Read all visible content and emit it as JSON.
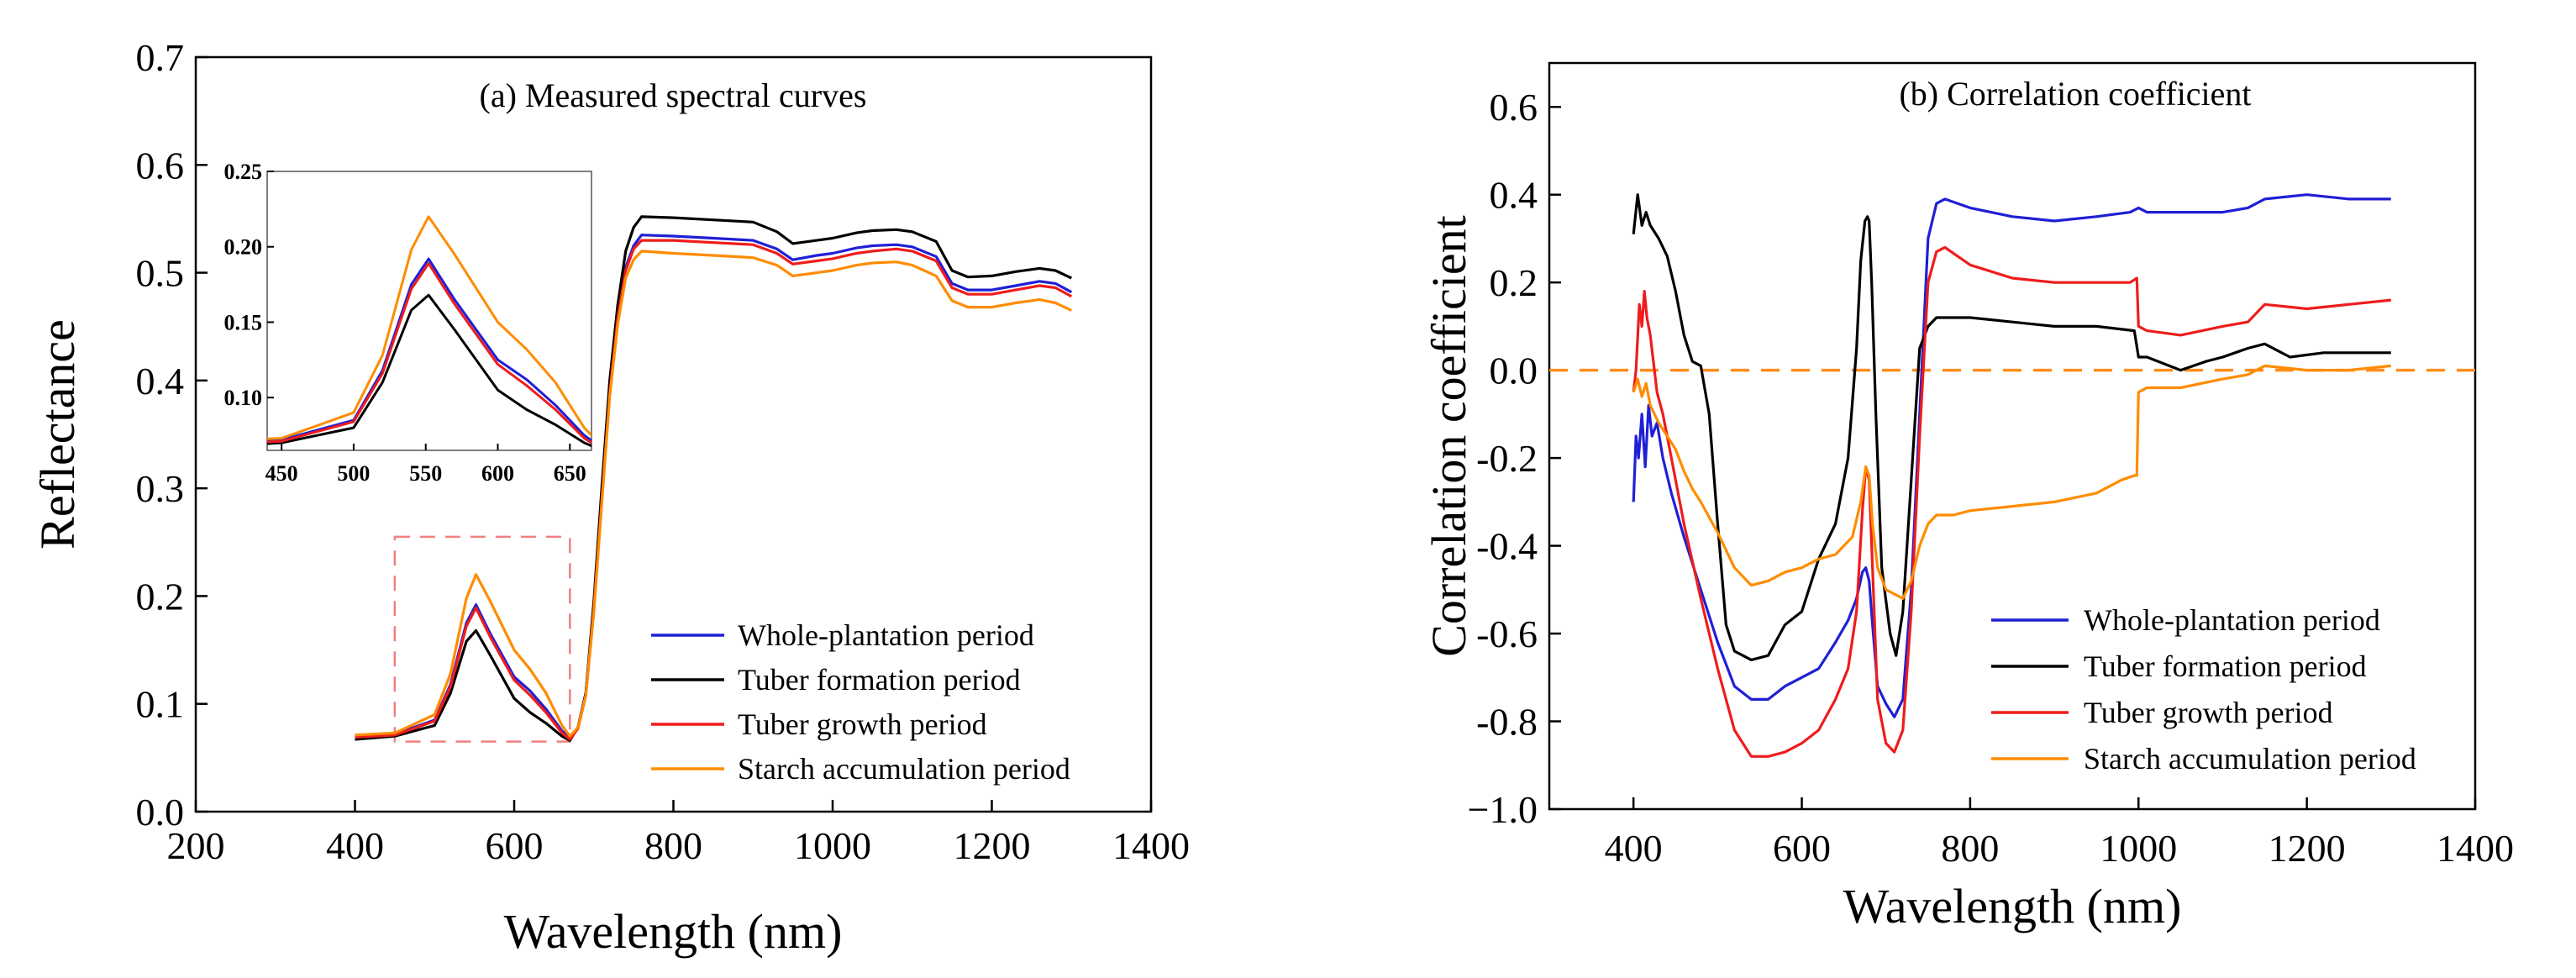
{
  "figure": {
    "series_colors": {
      "whole": "#1f1fd6",
      "tuber_formation": "#000000",
      "tuber_growth": "#ee1c1c",
      "starch": "#ff8c00",
      "zero_line": "#ff8c1a",
      "zoom_box": "#f08080"
    }
  },
  "chart_data": [
    {
      "type": "line",
      "title": "(a) Measured spectral curves",
      "xlabel": "Wavelength (nm)",
      "ylabel": "Reflectance",
      "xlim": [
        200,
        1400
      ],
      "ylim": [
        0,
        0.7
      ],
      "xticks": [
        200,
        400,
        600,
        800,
        1000,
        1200,
        1400
      ],
      "yticks": [
        0.0,
        0.1,
        0.2,
        0.3,
        0.4,
        0.5,
        0.6,
        0.7
      ],
      "xtick_labels": [
        "200",
        "400",
        "600",
        "800",
        "1000",
        "1200",
        "1400"
      ],
      "ytick_labels": [
        "0.0",
        "0.1",
        "0.2",
        "0.3",
        "0.4",
        "0.5",
        "0.6",
        "0.7"
      ],
      "legend": [
        "Whole-plantation period",
        "Tuber formation period",
        "Tuber growth period",
        "Starch accumulation period"
      ],
      "legend_position": "lower-right",
      "zoom_box": {
        "x": [
          450,
          670
        ],
        "y": [
          0.065,
          0.255
        ]
      },
      "series": [
        {
          "name": "Whole-plantation period",
          "color_key": "whole",
          "x": [
            400,
            450,
            500,
            520,
            540,
            552,
            570,
            600,
            620,
            640,
            660,
            670,
            680,
            690,
            700,
            710,
            720,
            730,
            740,
            750,
            760,
            800,
            850,
            900,
            930,
            950,
            980,
            1000,
            1030,
            1050,
            1080,
            1100,
            1130,
            1150,
            1170,
            1200,
            1230,
            1260,
            1280,
            1300
          ],
          "y": [
            0.07,
            0.072,
            0.085,
            0.118,
            0.175,
            0.192,
            0.165,
            0.125,
            0.112,
            0.095,
            0.075,
            0.068,
            0.078,
            0.11,
            0.19,
            0.29,
            0.39,
            0.46,
            0.505,
            0.525,
            0.535,
            0.534,
            0.532,
            0.53,
            0.522,
            0.512,
            0.516,
            0.518,
            0.523,
            0.525,
            0.526,
            0.524,
            0.515,
            0.49,
            0.484,
            0.484,
            0.488,
            0.492,
            0.49,
            0.482
          ]
        },
        {
          "name": "Tuber formation period",
          "color_key": "tuber_formation",
          "x": [
            400,
            450,
            500,
            520,
            540,
            552,
            570,
            600,
            620,
            640,
            660,
            670,
            680,
            690,
            700,
            710,
            720,
            730,
            740,
            750,
            760,
            800,
            850,
            900,
            930,
            950,
            980,
            1000,
            1030,
            1050,
            1080,
            1100,
            1130,
            1150,
            1170,
            1200,
            1230,
            1260,
            1280,
            1300
          ],
          "y": [
            0.067,
            0.07,
            0.08,
            0.11,
            0.158,
            0.168,
            0.145,
            0.105,
            0.092,
            0.082,
            0.07,
            0.066,
            0.078,
            0.11,
            0.195,
            0.3,
            0.4,
            0.47,
            0.52,
            0.542,
            0.552,
            0.551,
            0.549,
            0.547,
            0.538,
            0.527,
            0.53,
            0.532,
            0.537,
            0.539,
            0.54,
            0.538,
            0.529,
            0.502,
            0.496,
            0.497,
            0.501,
            0.504,
            0.502,
            0.495
          ]
        },
        {
          "name": "Tuber growth period",
          "color_key": "tuber_growth",
          "x": [
            400,
            450,
            500,
            520,
            540,
            552,
            570,
            600,
            620,
            640,
            660,
            670,
            680,
            690,
            700,
            710,
            720,
            730,
            740,
            750,
            760,
            800,
            850,
            900,
            930,
            950,
            980,
            1000,
            1030,
            1050,
            1080,
            1100,
            1130,
            1150,
            1170,
            1200,
            1230,
            1260,
            1280,
            1300
          ],
          "y": [
            0.069,
            0.071,
            0.084,
            0.116,
            0.172,
            0.189,
            0.162,
            0.122,
            0.108,
            0.092,
            0.073,
            0.067,
            0.077,
            0.108,
            0.188,
            0.288,
            0.388,
            0.458,
            0.502,
            0.522,
            0.53,
            0.53,
            0.528,
            0.526,
            0.518,
            0.508,
            0.511,
            0.513,
            0.518,
            0.52,
            0.522,
            0.52,
            0.511,
            0.486,
            0.48,
            0.48,
            0.484,
            0.488,
            0.486,
            0.478
          ]
        },
        {
          "name": "Starch accumulation period",
          "color_key": "starch",
          "x": [
            400,
            450,
            500,
            520,
            540,
            552,
            570,
            600,
            620,
            640,
            660,
            670,
            680,
            690,
            700,
            710,
            720,
            730,
            740,
            750,
            760,
            800,
            850,
            900,
            930,
            950,
            980,
            1000,
            1030,
            1050,
            1080,
            1100,
            1130,
            1150,
            1170,
            1200,
            1230,
            1260,
            1280,
            1300
          ],
          "y": [
            0.071,
            0.073,
            0.09,
            0.128,
            0.198,
            0.22,
            0.195,
            0.15,
            0.132,
            0.11,
            0.08,
            0.07,
            0.078,
            0.108,
            0.185,
            0.285,
            0.385,
            0.452,
            0.495,
            0.512,
            0.52,
            0.518,
            0.516,
            0.514,
            0.507,
            0.497,
            0.5,
            0.502,
            0.507,
            0.509,
            0.51,
            0.507,
            0.497,
            0.474,
            0.468,
            0.468,
            0.472,
            0.475,
            0.472,
            0.465
          ]
        }
      ],
      "inset": {
        "xlim": [
          440,
          665
        ],
        "ylim": [
          0.065,
          0.25
        ],
        "xticks": [
          450,
          500,
          550,
          600,
          650
        ],
        "yticks": [
          0.1,
          0.15,
          0.2,
          0.25
        ],
        "xtick_labels": [
          "450",
          "500",
          "550",
          "600",
          "650"
        ],
        "ytick_labels": [
          "0.10",
          "0.15",
          "0.20",
          "0.25"
        ]
      }
    },
    {
      "type": "line",
      "title": "(b) Correlation coefficient",
      "xlabel": "Wavelength (nm)",
      "ylabel": "Correlation coefficient",
      "xlim": [
        300,
        1400
      ],
      "ylim": [
        -1.0,
        0.7
      ],
      "xticks": [
        400,
        600,
        800,
        1000,
        1200,
        1400
      ],
      "yticks": [
        -1.0,
        -0.8,
        -0.6,
        -0.4,
        -0.2,
        0.0,
        0.2,
        0.4,
        0.6
      ],
      "xtick_labels": [
        "400",
        "600",
        "800",
        "1000",
        "1200",
        "1400"
      ],
      "ytick_labels": [
        "−1.0",
        "-0.8",
        "-0.6",
        "-0.4",
        "-0.2",
        "0.0",
        "0.2",
        "0.4",
        "0.6"
      ],
      "zero_line": 0.0,
      "legend": [
        "Whole-plantation period",
        "Tuber formation period",
        "Tuber growth period",
        "Starch accumulation period"
      ],
      "legend_position": "lower-right",
      "series": [
        {
          "name": "Whole-plantation period",
          "color_key": "whole",
          "x": [
            400,
            403,
            406,
            410,
            414,
            418,
            422,
            428,
            435,
            445,
            460,
            480,
            500,
            520,
            540,
            560,
            580,
            600,
            620,
            640,
            655,
            665,
            672,
            676,
            680,
            684,
            690,
            700,
            710,
            720,
            730,
            740,
            750,
            760,
            770,
            800,
            850,
            900,
            950,
            990,
            1000,
            1010,
            1050,
            1100,
            1130,
            1150,
            1200,
            1250,
            1300
          ],
          "y": [
            -0.3,
            -0.15,
            -0.2,
            -0.1,
            -0.22,
            -0.08,
            -0.15,
            -0.12,
            -0.2,
            -0.28,
            -0.38,
            -0.5,
            -0.62,
            -0.72,
            -0.75,
            -0.75,
            -0.72,
            -0.7,
            -0.68,
            -0.62,
            -0.57,
            -0.52,
            -0.46,
            -0.45,
            -0.48,
            -0.58,
            -0.72,
            -0.76,
            -0.79,
            -0.75,
            -0.5,
            -0.1,
            0.3,
            0.38,
            0.39,
            0.37,
            0.35,
            0.34,
            0.35,
            0.36,
            0.37,
            0.36,
            0.36,
            0.36,
            0.37,
            0.39,
            0.4,
            0.39,
            0.39
          ]
        },
        {
          "name": "Tuber formation period",
          "color_key": "tuber_formation",
          "x": [
            400,
            405,
            410,
            415,
            420,
            430,
            440,
            450,
            460,
            470,
            480,
            490,
            500,
            510,
            520,
            530,
            540,
            560,
            580,
            600,
            620,
            640,
            655,
            665,
            670,
            675,
            678,
            680,
            683,
            688,
            695,
            705,
            712,
            720,
            730,
            740,
            750,
            760,
            780,
            800,
            850,
            900,
            950,
            995,
            1000,
            1010,
            1050,
            1080,
            1100,
            1130,
            1150,
            1180,
            1220,
            1260,
            1300
          ],
          "y": [
            0.31,
            0.4,
            0.33,
            0.36,
            0.33,
            0.3,
            0.26,
            0.18,
            0.08,
            0.02,
            0.01,
            -0.1,
            -0.35,
            -0.58,
            -0.64,
            -0.65,
            -0.66,
            -0.65,
            -0.58,
            -0.55,
            -0.43,
            -0.35,
            -0.2,
            0.05,
            0.25,
            0.34,
            0.35,
            0.34,
            0.2,
            -0.1,
            -0.45,
            -0.6,
            -0.65,
            -0.55,
            -0.25,
            0.05,
            0.1,
            0.12,
            0.12,
            0.12,
            0.11,
            0.1,
            0.1,
            0.09,
            0.03,
            0.03,
            0.0,
            0.02,
            0.03,
            0.05,
            0.06,
            0.03,
            0.04,
            0.04,
            0.04
          ]
        },
        {
          "name": "Tuber growth period",
          "color_key": "tuber_growth",
          "x": [
            400,
            403,
            407,
            410,
            413,
            416,
            420,
            428,
            435,
            445,
            460,
            480,
            500,
            520,
            540,
            560,
            580,
            600,
            620,
            640,
            655,
            665,
            672,
            676,
            680,
            684,
            690,
            700,
            710,
            720,
            730,
            740,
            750,
            760,
            770,
            800,
            850,
            900,
            950,
            990,
            998,
            1000,
            1010,
            1050,
            1100,
            1130,
            1150,
            1200,
            1250,
            1300
          ],
          "y": [
            -0.05,
            0.0,
            0.15,
            0.1,
            0.18,
            0.12,
            0.08,
            -0.05,
            -0.1,
            -0.2,
            -0.35,
            -0.52,
            -0.68,
            -0.82,
            -0.88,
            -0.88,
            -0.87,
            -0.85,
            -0.82,
            -0.75,
            -0.68,
            -0.55,
            -0.32,
            -0.22,
            -0.25,
            -0.45,
            -0.75,
            -0.85,
            -0.87,
            -0.82,
            -0.55,
            -0.15,
            0.2,
            0.27,
            0.28,
            0.24,
            0.21,
            0.2,
            0.2,
            0.2,
            0.21,
            0.1,
            0.09,
            0.08,
            0.1,
            0.11,
            0.15,
            0.14,
            0.15,
            0.16
          ]
        },
        {
          "name": "Starch accumulation period",
          "color_key": "starch",
          "x": [
            400,
            405,
            410,
            415,
            420,
            430,
            440,
            450,
            460,
            470,
            480,
            500,
            520,
            540,
            560,
            580,
            600,
            620,
            640,
            660,
            670,
            676,
            680,
            684,
            690,
            700,
            710,
            720,
            730,
            740,
            750,
            760,
            780,
            800,
            850,
            900,
            950,
            980,
            995,
            998,
            1000,
            1010,
            1050,
            1100,
            1130,
            1150,
            1200,
            1250,
            1300
          ],
          "y": [
            -0.05,
            -0.02,
            -0.06,
            -0.03,
            -0.08,
            -0.12,
            -0.15,
            -0.18,
            -0.23,
            -0.27,
            -0.3,
            -0.37,
            -0.45,
            -0.49,
            -0.48,
            -0.46,
            -0.45,
            -0.43,
            -0.42,
            -0.38,
            -0.3,
            -0.22,
            -0.24,
            -0.35,
            -0.45,
            -0.5,
            -0.51,
            -0.52,
            -0.48,
            -0.4,
            -0.35,
            -0.33,
            -0.33,
            -0.32,
            -0.31,
            -0.3,
            -0.28,
            -0.25,
            -0.24,
            -0.24,
            -0.05,
            -0.04,
            -0.04,
            -0.02,
            -0.01,
            0.01,
            0.0,
            0.0,
            0.01
          ]
        }
      ]
    }
  ]
}
